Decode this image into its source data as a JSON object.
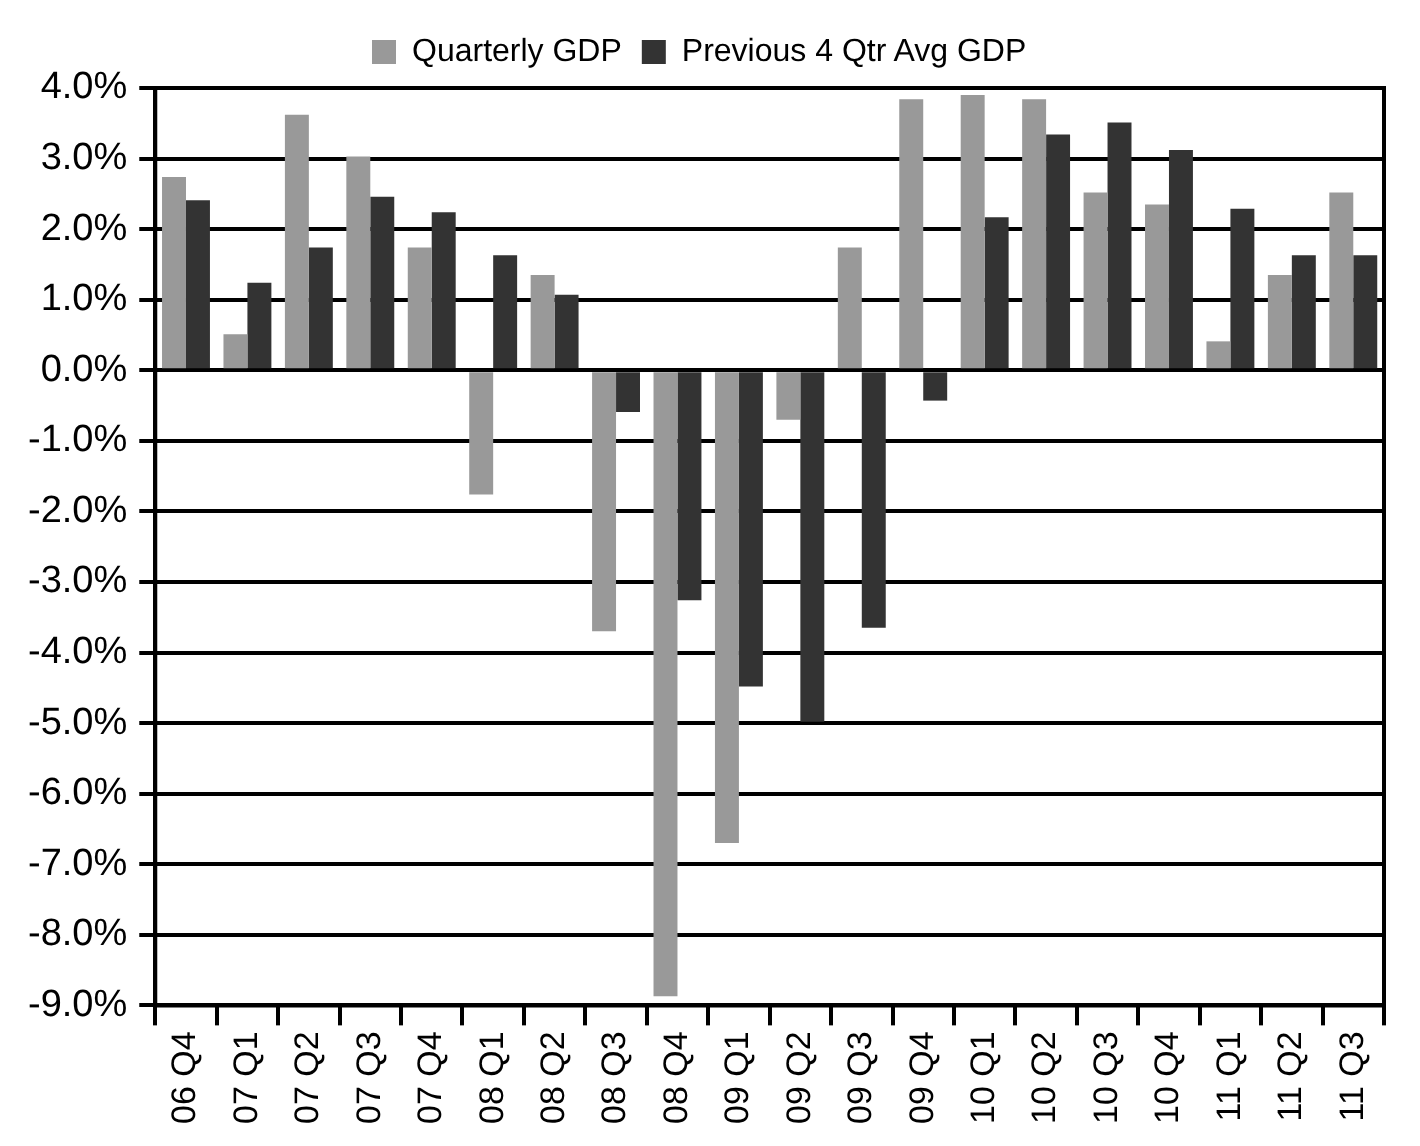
{
  "chart_data": {
    "type": "bar",
    "categories": [
      "06 Q4",
      "07 Q1",
      "07 Q2",
      "07 Q3",
      "07 Q4",
      "08 Q1",
      "08 Q2",
      "08 Q3",
      "08 Q4",
      "09 Q1",
      "09 Q2",
      "09 Q3",
      "09 Q4",
      "10 Q1",
      "10 Q2",
      "10 Q3",
      "10 Q4",
      "11 Q1",
      "11 Q2",
      "11 Q3"
    ],
    "series": [
      {
        "name": "Quarterly GDP",
        "color": "#999999",
        "values": [
          2.74,
          0.51,
          3.62,
          3.03,
          1.74,
          -1.76,
          1.35,
          -3.7,
          -8.87,
          -6.7,
          -0.7,
          1.74,
          3.84,
          3.9,
          3.84,
          2.52,
          2.35,
          0.41,
          1.35,
          2.52
        ]
      },
      {
        "name": "Previous 4 Qtr Avg GDP",
        "color": "#333333",
        "values": [
          2.41,
          1.24,
          1.74,
          2.46,
          2.24,
          1.63,
          1.07,
          -0.59,
          -3.26,
          -4.48,
          -4.98,
          -3.65,
          -0.43,
          2.17,
          3.34,
          3.51,
          3.12,
          2.29,
          1.63,
          1.63
        ]
      }
    ],
    "ylim": [
      -9,
      4
    ],
    "yticks": [
      {
        "value": -9,
        "label": "-9.0%"
      },
      {
        "value": -8,
        "label": "-8.0%"
      },
      {
        "value": -7,
        "label": "-7.0%"
      },
      {
        "value": -6,
        "label": "-6.0%"
      },
      {
        "value": -5,
        "label": "-5.0%"
      },
      {
        "value": -4,
        "label": "-4.0%"
      },
      {
        "value": -3,
        "label": "-3.0%"
      },
      {
        "value": -2,
        "label": "-2.0%"
      },
      {
        "value": -1,
        "label": "-1.0%"
      },
      {
        "value": 0,
        "label": "0.0%"
      },
      {
        "value": 1,
        "label": "1.0%"
      },
      {
        "value": 2,
        "label": "2.0%"
      },
      {
        "value": 3,
        "label": "3.0%"
      },
      {
        "value": 4,
        "label": "4.0%"
      }
    ],
    "grid": "y",
    "legend": "top"
  }
}
